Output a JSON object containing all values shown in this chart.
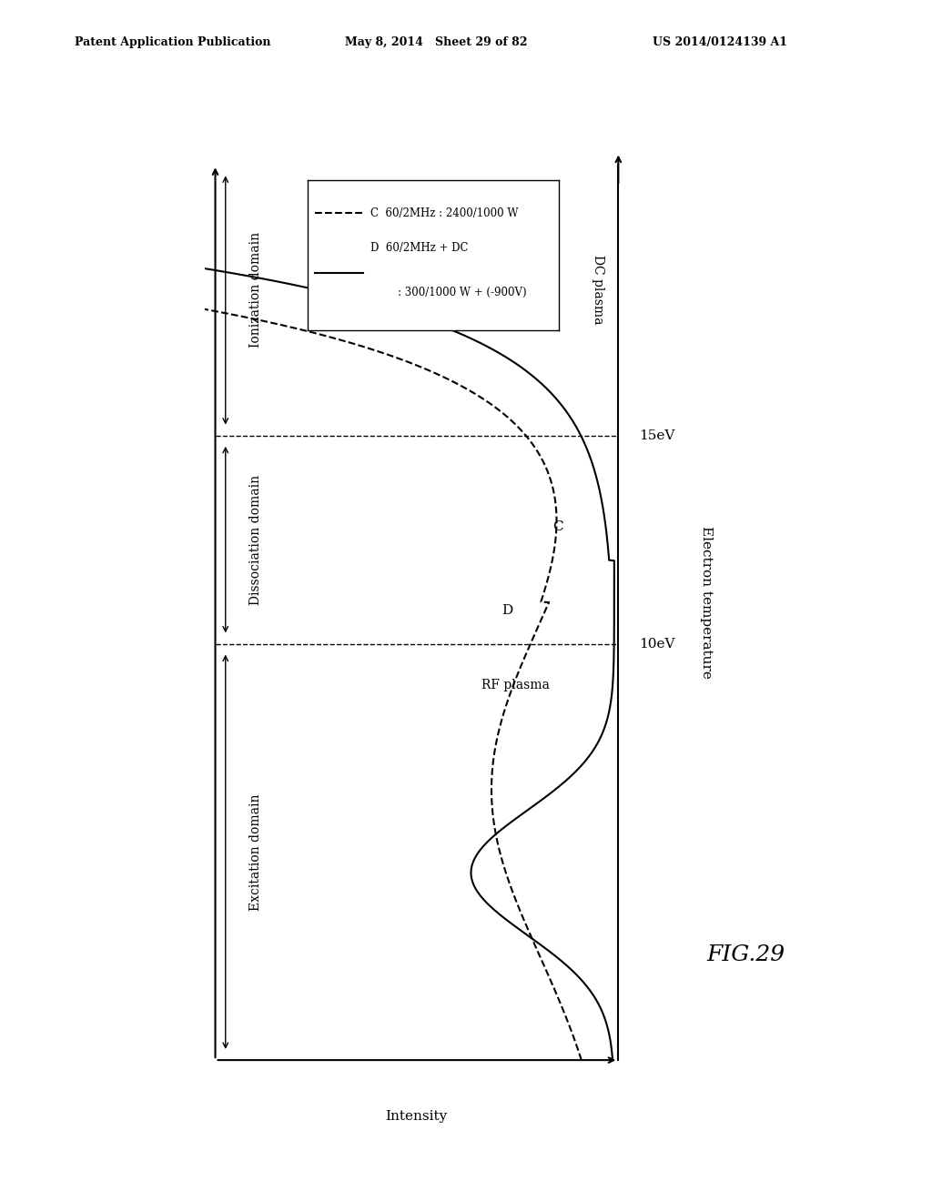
{
  "header_left": "Patent Application Publication",
  "header_mid": "May 8, 2014   Sheet 29 of 82",
  "header_right": "US 2014/0124139 A1",
  "fig_label": "FIG.29",
  "xlabel": "Intensity",
  "ylabel": "Electron temperature",
  "domain_excitation": "Excitation domain",
  "domain_dissociation": "Dissociation domain",
  "domain_ionization": "Ionization domain",
  "label_rf": "RF plasma",
  "label_dc": "DC plasma",
  "label_C": "C",
  "label_D": "D",
  "label_10eV": "10eV",
  "label_15eV": "15eV",
  "legend_C_text1": "C  60/2MHz : 2400/1000 W",
  "legend_D_text1": "D  60/2MHz + DC",
  "legend_D_text2": "        : 300/1000 W + (-900V)",
  "background_color": "#ffffff"
}
